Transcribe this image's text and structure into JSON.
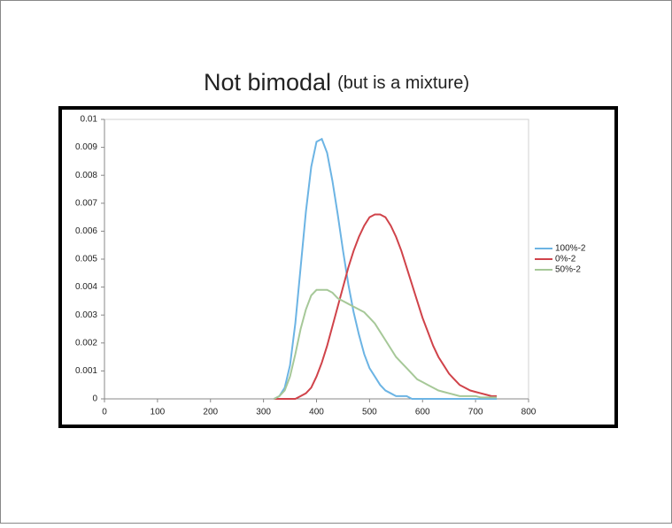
{
  "chart_data": {
    "type": "line",
    "title": "Not bimodal",
    "subtitle": "(but is a mixture)",
    "x": [
      320,
      330,
      340,
      350,
      360,
      370,
      380,
      390,
      400,
      410,
      420,
      430,
      440,
      450,
      460,
      470,
      480,
      490,
      500,
      510,
      520,
      530,
      540,
      550,
      560,
      570,
      580,
      590,
      600,
      610,
      620,
      630,
      640,
      650,
      660,
      670,
      680,
      690,
      700,
      710,
      720,
      730,
      740
    ],
    "series": [
      {
        "name": "100%-2",
        "color": "#6cb4e4",
        "values": [
          0,
          0.0001,
          0.0004,
          0.0012,
          0.0027,
          0.0047,
          0.0067,
          0.0083,
          0.0092,
          0.0093,
          0.0088,
          0.0078,
          0.0066,
          0.0053,
          0.0041,
          0.0031,
          0.0023,
          0.0016,
          0.0011,
          0.0008,
          0.0005,
          0.0003,
          0.0002,
          0.0001,
          0.0001,
          0.0001,
          0,
          0,
          0,
          0,
          0,
          0,
          0,
          0,
          0,
          0,
          0,
          0,
          0,
          0,
          0,
          0,
          0
        ]
      },
      {
        "name": "0%-2",
        "color": "#d0434a",
        "values": [
          0,
          0,
          0,
          0,
          0,
          0.0001,
          0.0002,
          0.0004,
          0.0008,
          0.0013,
          0.0019,
          0.0026,
          0.0033,
          0.004,
          0.0047,
          0.0053,
          0.0058,
          0.0062,
          0.0065,
          0.0066,
          0.0066,
          0.0065,
          0.0062,
          0.0058,
          0.0053,
          0.0047,
          0.0041,
          0.0035,
          0.0029,
          0.0024,
          0.0019,
          0.0015,
          0.0012,
          0.0009,
          0.0007,
          0.0005,
          0.0004,
          0.0003,
          0.00025,
          0.0002,
          0.00015,
          0.0001,
          0.0001
        ]
      },
      {
        "name": "50%-2",
        "color": "#a6c898",
        "values": [
          0,
          0.0001,
          0.0003,
          0.0008,
          0.0016,
          0.0025,
          0.0032,
          0.0037,
          0.0039,
          0.0039,
          0.0039,
          0.0038,
          0.0036,
          0.0035,
          0.0034,
          0.0033,
          0.0032,
          0.0031,
          0.0029,
          0.0027,
          0.0024,
          0.0021,
          0.0018,
          0.0015,
          0.0013,
          0.0011,
          0.0009,
          0.0007,
          0.0006,
          0.0005,
          0.0004,
          0.0003,
          0.00025,
          0.0002,
          0.00015,
          0.0001,
          0.0001,
          0.0001,
          0.0001,
          5e-05,
          5e-05,
          5e-05,
          5e-05
        ]
      }
    ],
    "xlim": [
      0,
      800
    ],
    "xticks": [
      0,
      100,
      200,
      300,
      400,
      500,
      600,
      700,
      800
    ],
    "ylim": [
      0,
      0.01
    ],
    "yticks": [
      0,
      0.001,
      0.002,
      0.003,
      0.004,
      0.005,
      0.006,
      0.007,
      0.008,
      0.009,
      0.01
    ],
    "legend": "right"
  }
}
